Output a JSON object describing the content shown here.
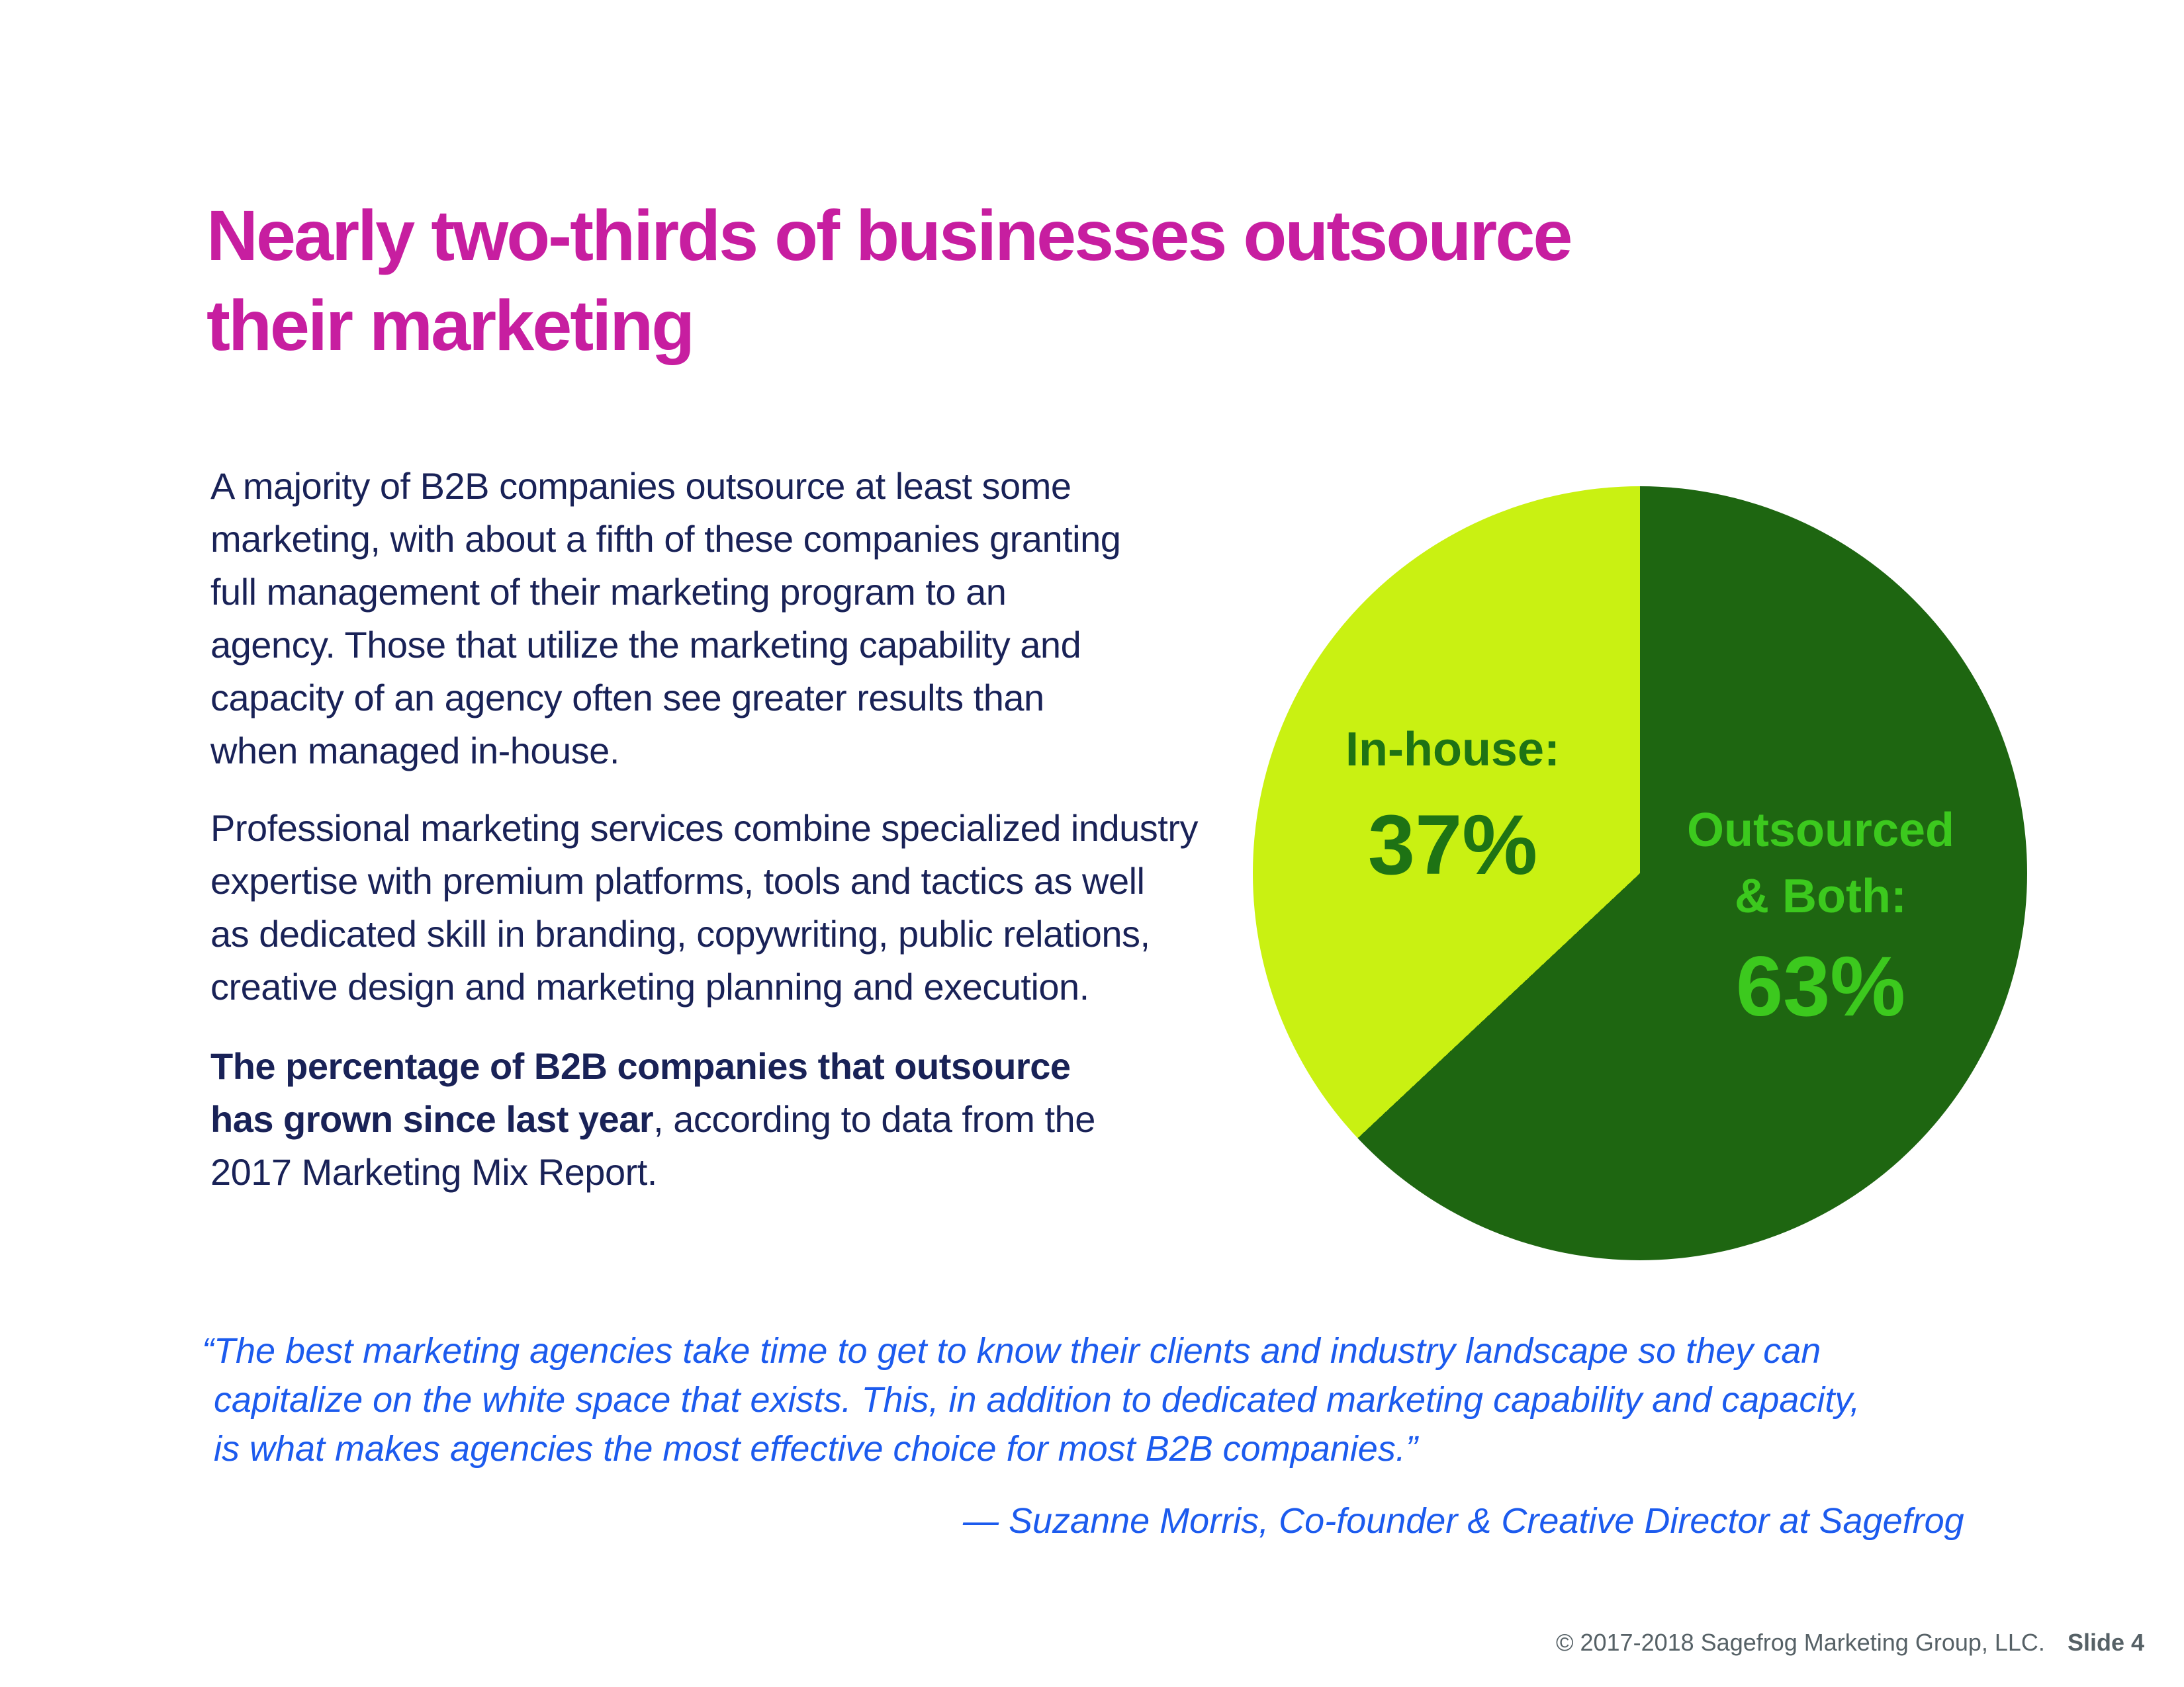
{
  "theme": {
    "title-color": "#C71EA0",
    "body-color": "#192257",
    "quote-color": "#1C5BEE",
    "footer-color": "#566166"
  },
  "title": {
    "lines": [
      "Nearly two-thirds of businesses outsource",
      "their marketing"
    ]
  },
  "paragraphs": {
    "p1": {
      "lines": [
        "A majority of B2B companies outsource at least some",
        "marketing, with about a fifth of these companies granting",
        "full management of their marketing program to an",
        "agency. Those that utilize the marketing capability and",
        "capacity of an agency often see greater results than",
        "when managed in-house."
      ]
    },
    "p2": {
      "lines": [
        "Professional marketing services combine specialized industry",
        "expertise with premium platforms, tools and tactics as well",
        "as dedicated skill in branding, copywriting, public relations,",
        "creative design and marketing planning and execution."
      ]
    },
    "p3": {
      "lines": [
        {
          "bold": "The percentage of B2B companies that outsource",
          "regular": ""
        },
        {
          "bold": "has grown since last year",
          "regular": ", according to data from the"
        },
        {
          "bold": "",
          "regular": " 2017 Marketing Mix Report."
        }
      ]
    }
  },
  "chart_data": {
    "type": "pie",
    "title": "",
    "start_angle_deg": 0,
    "direction": "clockwise",
    "labels_inside": true,
    "slices": [
      {
        "label": "Outsourced & Both",
        "value": 63,
        "color": "#1E6611",
        "text_color": "#3CC91E",
        "label_display_line1": "Outsourced",
        "label_display_line2": "& Both:",
        "value_display": "63%"
      },
      {
        "label": "In-house",
        "value": 37,
        "color": "#C9F112",
        "text_color": "#1E7314",
        "label_display": "In-house:",
        "value_display": "37%"
      }
    ]
  },
  "quote": {
    "lines": [
      "“The best marketing agencies take time to get to know their clients and industry landscape so they can",
      "capitalize on the white space that exists. This, in addition to dedicated marketing capability and capacity,",
      "is what makes agencies the most effective choice for most B2B companies.”"
    ],
    "attribution": "— Suzanne Morris, Co-founder & Creative Director at Sagefrog"
  },
  "footer": {
    "copyright": "© 2017-2018 Sagefrog Marketing Group, LLC.",
    "slide_label": "Slide 4"
  }
}
